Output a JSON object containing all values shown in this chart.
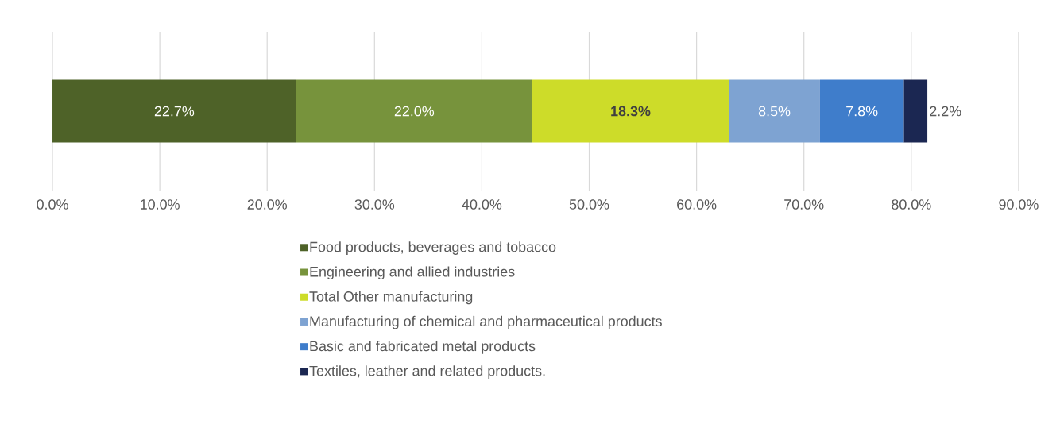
{
  "chart_data": {
    "type": "bar",
    "orientation": "horizontal",
    "stacked": true,
    "categories": [
      null
    ],
    "series": [
      {
        "name": "Food products, beverages and tobacco",
        "color": "#4e6228",
        "values": [
          22.7
        ],
        "value_labels": [
          "22.7%"
        ]
      },
      {
        "name": "Engineering and allied industries",
        "color": "#77933c",
        "values": [
          22.0
        ],
        "value_labels": [
          "22.0%"
        ]
      },
      {
        "name": "Total Other manufacturing",
        "color": "#cddc29",
        "values": [
          18.3
        ],
        "value_labels": [
          "18.3%"
        ]
      },
      {
        "name": "Manufacturing of chemical and pharmaceutical products",
        "color": "#7ea3d2",
        "values": [
          8.5
        ],
        "value_labels": [
          "8.5%"
        ]
      },
      {
        "name": "Basic and fabricated metal products",
        "color": "#3f7dcb",
        "values": [
          7.8
        ],
        "value_labels": [
          "7.8%"
        ]
      },
      {
        "name": "Textiles, leather and related products.",
        "color": "#1b2752",
        "values": [
          2.2
        ],
        "value_labels": [
          "2.2%"
        ]
      }
    ],
    "xlim": [
      0,
      90
    ],
    "xticks": [
      {
        "value": 0,
        "label": "0.0%"
      },
      {
        "value": 10,
        "label": "10.0%"
      },
      {
        "value": 20,
        "label": "20.0%"
      },
      {
        "value": 30,
        "label": "30.0%"
      },
      {
        "value": 40,
        "label": "40.0%"
      },
      {
        "value": 50,
        "label": "50.0%"
      },
      {
        "value": 60,
        "label": "60.0%"
      },
      {
        "value": 70,
        "label": "70.0%"
      },
      {
        "value": 80,
        "label": "80.0%"
      },
      {
        "value": 90,
        "label": "90.0%"
      }
    ],
    "grid": "x",
    "legend": "bottom"
  }
}
